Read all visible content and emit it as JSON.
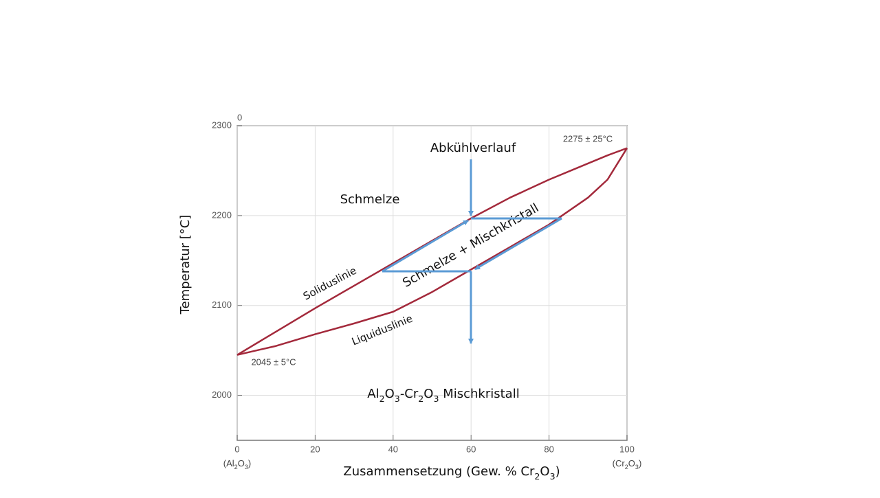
{
  "chart_data": {
    "type": "line",
    "corner_label": "0",
    "y_label": "Temperatur  [°C]",
    "x_label_parts": [
      "Zusammensetzung (Gew. % Cr",
      "2",
      "O",
      "3",
      ")"
    ],
    "x_end_labels": [
      [
        "(Al",
        "2",
        "O",
        "3",
        ")"
      ],
      [
        "(Cr",
        "2",
        "O",
        "3",
        ")"
      ]
    ],
    "annotations": {
      "top_point": "2275 ± 25°C",
      "bottom_point": "2045 ± 5°C",
      "process": "Abkühlverlauf",
      "melt": "Schmelze",
      "two_phase": "Schmelze + Mischkristall"
    },
    "solid_region_parts": [
      "Al",
      "2",
      "O",
      "3",
      "-Cr",
      "2",
      "O",
      "3",
      " Mischkristall"
    ],
    "x": [
      0,
      10,
      20,
      30,
      40,
      50,
      60,
      70,
      80,
      90,
      95,
      100
    ],
    "series": [
      {
        "name": "Soliduslinie",
        "color": "#a3293b",
        "values": [
          2045,
          2071,
          2097,
          2122,
          2147,
          2172,
          2197,
          2220,
          2240,
          2258,
          2267,
          2275
        ]
      },
      {
        "name": "Liquiduslinie",
        "color": "#a3293b",
        "values": [
          2045,
          2055,
          2068,
          2080,
          2093,
          2115,
          2140,
          2165,
          2190,
          2220,
          2240,
          2275
        ]
      }
    ],
    "xlim": [
      0,
      100
    ],
    "xticks": [
      0,
      20,
      40,
      60,
      80,
      100
    ],
    "ylim": [
      1950,
      2300
    ],
    "yticks": [
      2000,
      2100,
      2200,
      2300
    ],
    "grid": true
  }
}
